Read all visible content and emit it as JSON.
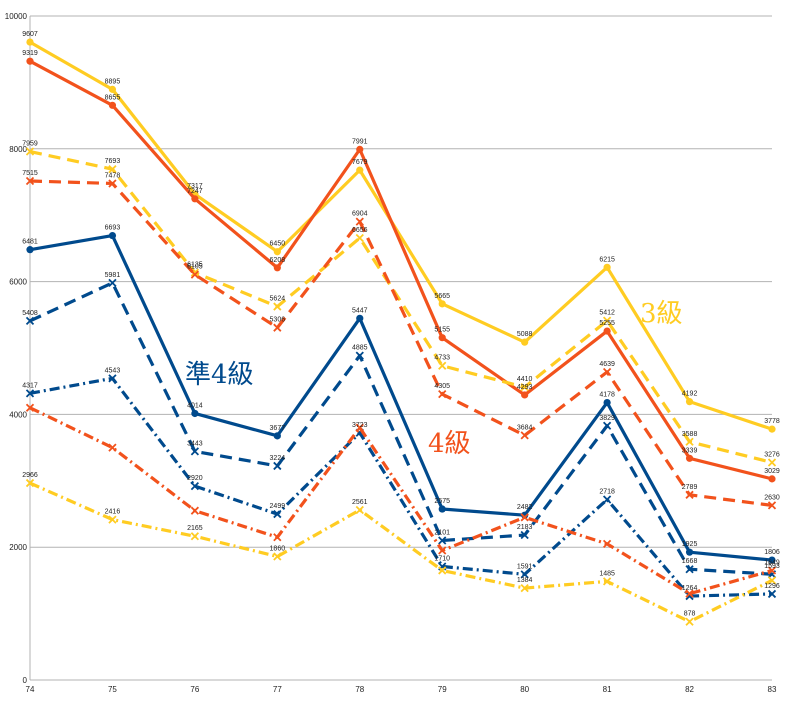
{
  "chart_data": {
    "type": "line",
    "x": [
      "74",
      "75",
      "76",
      "77",
      "78",
      "79",
      "80",
      "81",
      "82",
      "83"
    ],
    "ylim": [
      0,
      10000
    ],
    "yticks": [
      "0",
      "2000",
      "4000",
      "6000",
      "8000",
      "10000"
    ],
    "grid": true,
    "legend": "none",
    "series": [
      {
        "color": "#ffcc22",
        "dash": "solid",
        "values": [
          9607,
          8895,
          7317,
          6450,
          7679,
          5665,
          5088,
          6215,
          4192,
          3778
        ],
        "labels": [
          "9607",
          "8895",
          "7317",
          "6450",
          "7679",
          "5665",
          "5088",
          "6215",
          "4192",
          "3778"
        ]
      },
      {
        "color": "#f2521c",
        "dash": "solid",
        "values": [
          9319,
          8655,
          7247,
          6208,
          7991,
          5155,
          4293,
          5255,
          3339,
          3029
        ],
        "labels": [
          "9319",
          "8655",
          "7247",
          "6208",
          "7991",
          "5155",
          "4293",
          "5255",
          "3339",
          "3029"
        ]
      },
      {
        "color": "#ffcc22",
        "dash": "dash",
        "values": [
          7959,
          7693,
          6135,
          5624,
          6656,
          4733,
          4410,
          5412,
          3588,
          3276
        ],
        "labels": [
          "7959",
          "7693",
          "6135",
          "5624",
          "6656",
          "4733",
          "4410",
          "5412",
          "3588",
          "3276"
        ]
      },
      {
        "color": "#f2521c",
        "dash": "dash",
        "values": [
          7515,
          7478,
          6105,
          5306,
          6904,
          4305,
          3684,
          4639,
          2789,
          2630
        ],
        "labels": [
          "7515",
          "7478",
          "6105",
          "5306",
          "6904",
          "4305",
          "3684",
          "4639",
          "2789",
          "2630"
        ]
      },
      {
        "color": "#004a8d",
        "dash": "solid",
        "values": [
          6481,
          6693,
          4014,
          3677,
          5447,
          2575,
          2482,
          4178,
          1925,
          1806
        ],
        "labels": [
          "6481",
          "6693",
          "4014",
          "3677",
          "5447",
          "2575",
          "2482",
          "4178",
          "1925",
          "1806"
        ]
      },
      {
        "color": "#004a8d",
        "dash": "dash",
        "values": [
          5408,
          5981,
          3443,
          3224,
          4885,
          2101,
          2183,
          3829,
          1668,
          1593
        ],
        "labels": [
          "5408",
          "5981",
          "3443",
          "3224",
          "4885",
          "2101",
          "2183",
          "3829",
          "1668",
          "1593"
        ]
      },
      {
        "color": "#004a8d",
        "dash": "dashdot",
        "values": [
          4317,
          4543,
          2920,
          2499,
          3723,
          1710,
          1591,
          2718,
          1264,
          1296
        ],
        "labels": [
          "4317",
          "4543",
          "2920",
          "2499",
          "3723",
          "1710",
          "1591",
          "2718",
          "1264",
          "1296"
        ]
      },
      {
        "color": "#f2521c",
        "dash": "dashdot",
        "values": [
          4100,
          3500,
          2550,
          2150,
          3800,
          1950,
          2450,
          2050,
          1300,
          1649
        ],
        "labels": [
          "",
          "",
          "",
          "",
          "",
          "",
          "",
          "",
          "",
          "1649"
        ]
      },
      {
        "color": "#ffcc22",
        "dash": "dashdot",
        "values": [
          2966,
          2416,
          2165,
          1860,
          2561,
          1650,
          1384,
          1485,
          878,
          1500
        ],
        "labels": [
          "2966",
          "2416",
          "2165",
          "1860",
          "2561",
          "",
          "1384",
          "1485",
          "878",
          ""
        ]
      }
    ],
    "annotations": [
      {
        "text": "3級",
        "color": "#ffcc22"
      },
      {
        "text": "準4級",
        "color": "#004a8d"
      },
      {
        "text": "4級",
        "color": "#f2521c"
      }
    ]
  }
}
